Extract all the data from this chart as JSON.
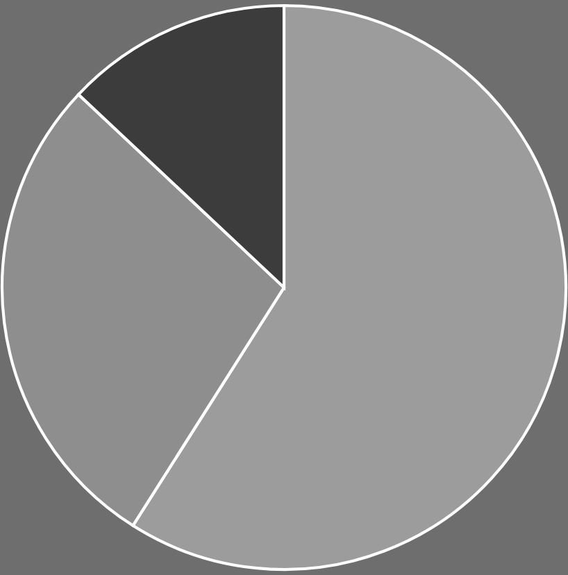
{
  "chart_data": {
    "type": "pie",
    "categories": [
      null,
      null,
      null
    ],
    "values": [
      59,
      28,
      13
    ],
    "colors": [
      "#9c9c9c",
      "#8e8e8e",
      "#3c3c3c"
    ]
  }
}
